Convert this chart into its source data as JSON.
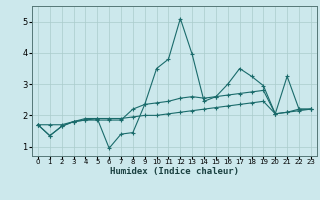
{
  "xlabel": "Humidex (Indice chaleur)",
  "bg_color": "#cce8ec",
  "grid_color": "#aacccc",
  "line_color": "#1a6b6b",
  "xlim": [
    -0.5,
    23.5
  ],
  "ylim": [
    0.7,
    5.5
  ],
  "xticks": [
    0,
    1,
    2,
    3,
    4,
    5,
    6,
    7,
    8,
    9,
    10,
    11,
    12,
    13,
    14,
    15,
    16,
    17,
    18,
    19,
    20,
    21,
    22,
    23
  ],
  "yticks": [
    1,
    2,
    3,
    4,
    5
  ],
  "series": [
    [
      1.7,
      1.35,
      1.65,
      1.8,
      1.85,
      1.9,
      0.95,
      1.4,
      1.45,
      2.35,
      3.5,
      3.8,
      5.1,
      3.95,
      2.45,
      2.6,
      3.0,
      3.5,
      3.25,
      2.95,
      2.05,
      3.25,
      2.2,
      2.2
    ],
    [
      1.7,
      1.35,
      1.65,
      1.8,
      1.85,
      1.85,
      1.85,
      1.85,
      2.2,
      2.35,
      2.4,
      2.45,
      2.55,
      2.6,
      2.55,
      2.6,
      2.65,
      2.7,
      2.75,
      2.8,
      2.05,
      2.1,
      2.2,
      2.2
    ],
    [
      1.7,
      1.7,
      1.7,
      1.8,
      1.9,
      1.9,
      1.9,
      1.9,
      1.95,
      2.0,
      2.0,
      2.05,
      2.1,
      2.15,
      2.2,
      2.25,
      2.3,
      2.35,
      2.4,
      2.45,
      2.05,
      2.1,
      2.15,
      2.2
    ]
  ]
}
